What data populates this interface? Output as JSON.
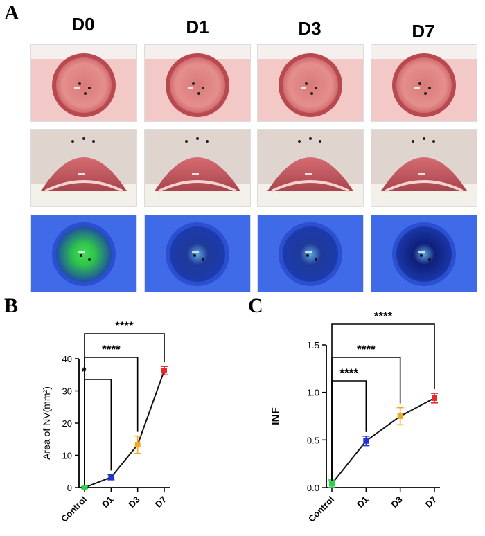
{
  "panels": {
    "a": "A",
    "b": "B",
    "c": "C"
  },
  "columns": [
    "D0",
    "D1",
    "D3",
    "D7"
  ],
  "photo_rows": [
    {
      "kind": "eye-front",
      "bg": "#f2c9c7",
      "iris": "#e58f8c",
      "cornea": "#d87a7a"
    },
    {
      "kind": "eye-side",
      "bg": "#e0d4cf",
      "iris": "#e5878c",
      "cornea": "#d66b72"
    },
    {
      "kind": "eye-fluorescein",
      "bg": "#3f6ae8",
      "iris": "#2b4fd0",
      "cornea": "#1c3bb0"
    }
  ],
  "chart_data": [
    {
      "type": "line",
      "panel": "B",
      "categories": [
        "Control",
        "D1",
        "D3",
        "D7"
      ],
      "values": [
        0,
        3.2,
        13.3,
        36.3
      ],
      "errors": [
        0.3,
        0.8,
        2.7,
        1.3
      ],
      "point_colors": [
        "#2dd44a",
        "#2233cc",
        "#f5a623",
        "#e8262b"
      ],
      "ylabel": "Area of NV(mm²)",
      "ylim": [
        0,
        40
      ],
      "yticks": [
        "0",
        "10",
        "20",
        "30",
        "40"
      ],
      "significance": [
        {
          "from": "Control",
          "to": "D1",
          "label": "*"
        },
        {
          "from": "Control",
          "to": "D3",
          "label": "****"
        },
        {
          "from": "Control",
          "to": "D7",
          "label": "****"
        }
      ]
    },
    {
      "type": "line",
      "panel": "C",
      "categories": [
        "Control",
        "D1",
        "D3",
        "D7"
      ],
      "values": [
        0.04,
        0.49,
        0.75,
        0.94
      ],
      "errors": [
        0.04,
        0.05,
        0.09,
        0.05
      ],
      "point_colors": [
        "#2dd44a",
        "#2233cc",
        "#f5a623",
        "#e8262b"
      ],
      "ylabel": "INF",
      "ylim": [
        0,
        1.5
      ],
      "yticks": [
        "0.0",
        "0.5",
        "1.0",
        "1.5"
      ],
      "significance": [
        {
          "from": "Control",
          "to": "D1",
          "label": "****"
        },
        {
          "from": "Control",
          "to": "D3",
          "label": "****"
        },
        {
          "from": "Control",
          "to": "D7",
          "label": "****"
        }
      ]
    }
  ]
}
